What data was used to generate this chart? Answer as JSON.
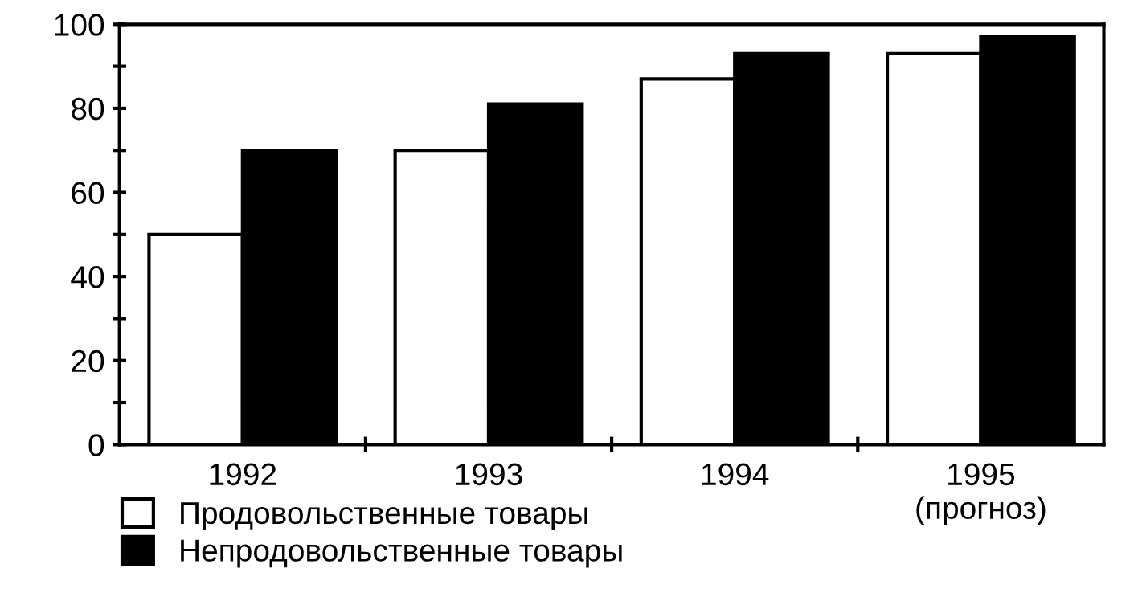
{
  "chart_data": {
    "type": "bar",
    "categories": [
      "1992",
      "1993",
      "1994",
      "1995\n(прогноз)"
    ],
    "series": [
      {
        "name": "Продовольственные товары",
        "color": "#ffffff",
        "values": [
          50,
          70,
          87,
          93
        ]
      },
      {
        "name": "Непродовольственные товары",
        "color": "#000000",
        "values": [
          70,
          81,
          93,
          97
        ]
      }
    ],
    "ylim": [
      0,
      100
    ],
    "yticks": [
      0,
      {
        "value": 10,
        "label": null
      },
      20,
      {
        "value": 30,
        "label": null
      },
      40,
      {
        "value": 50,
        "label": null
      },
      60,
      {
        "value": 70,
        "label": null
      },
      80,
      {
        "value": 90,
        "label": null
      },
      100
    ],
    "grid": false,
    "legend": "bottom left"
  }
}
